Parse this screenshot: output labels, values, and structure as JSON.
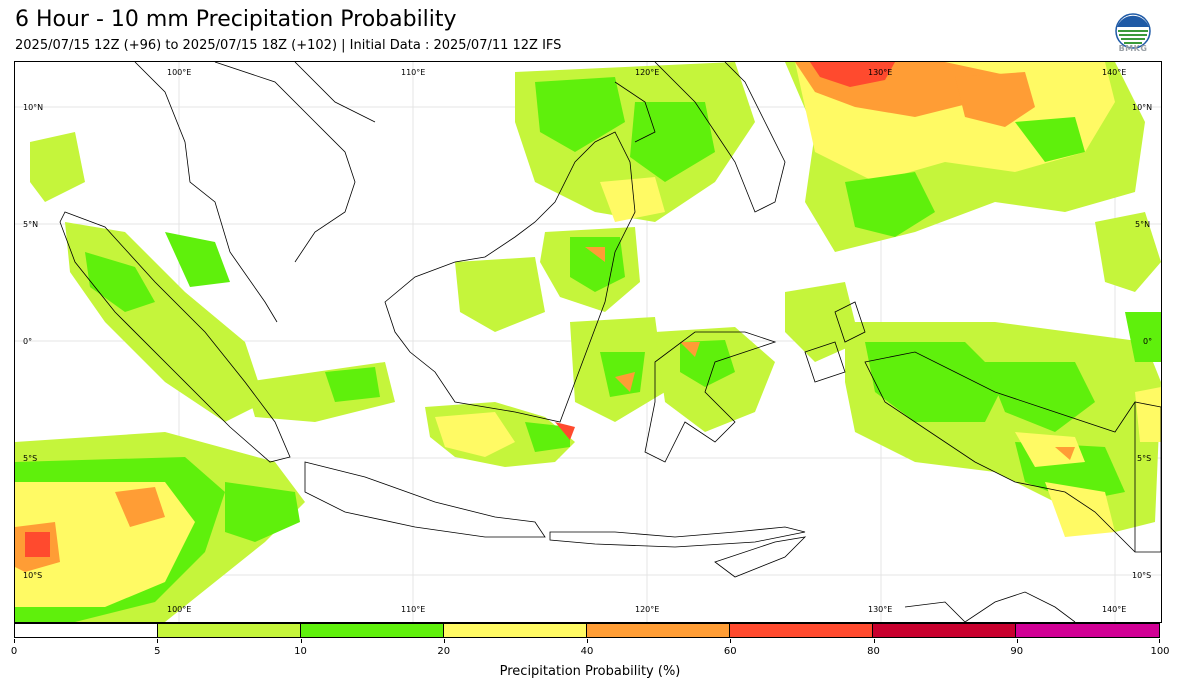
{
  "header": {
    "title": "6 Hour - 10 mm Precipitation Probability",
    "subtitle": "2025/07/15 12Z (+96) to 2025/07/15 18Z (+102) | Initial Data : 2025/07/11 12Z IFS",
    "logo_text": "BMKG"
  },
  "map": {
    "top_lon_labels": [
      "100°E",
      "110°E",
      "120°E",
      "130°E",
      "140°E"
    ],
    "bottom_lon_labels": [
      "100°E",
      "110°E",
      "120°E",
      "130°E",
      "140°E"
    ],
    "left_lat_labels": [
      "10°N",
      "5°N",
      "0°",
      "5°S",
      "10°S"
    ],
    "right_lat_labels": [
      "10°N",
      "5°N",
      "0°",
      "5°S",
      "10°S"
    ]
  },
  "colorbar": {
    "ticks": [
      "0",
      "5",
      "10",
      "20",
      "40",
      "60",
      "80",
      "90",
      "100"
    ],
    "colors": [
      "#ffffff",
      "#c5f53b",
      "#5ff00c",
      "#fffa64",
      "#ff9d35",
      "#ff4a2e",
      "#c8002e",
      "#d10095"
    ],
    "label": "Precipitation Probability (%)"
  }
}
